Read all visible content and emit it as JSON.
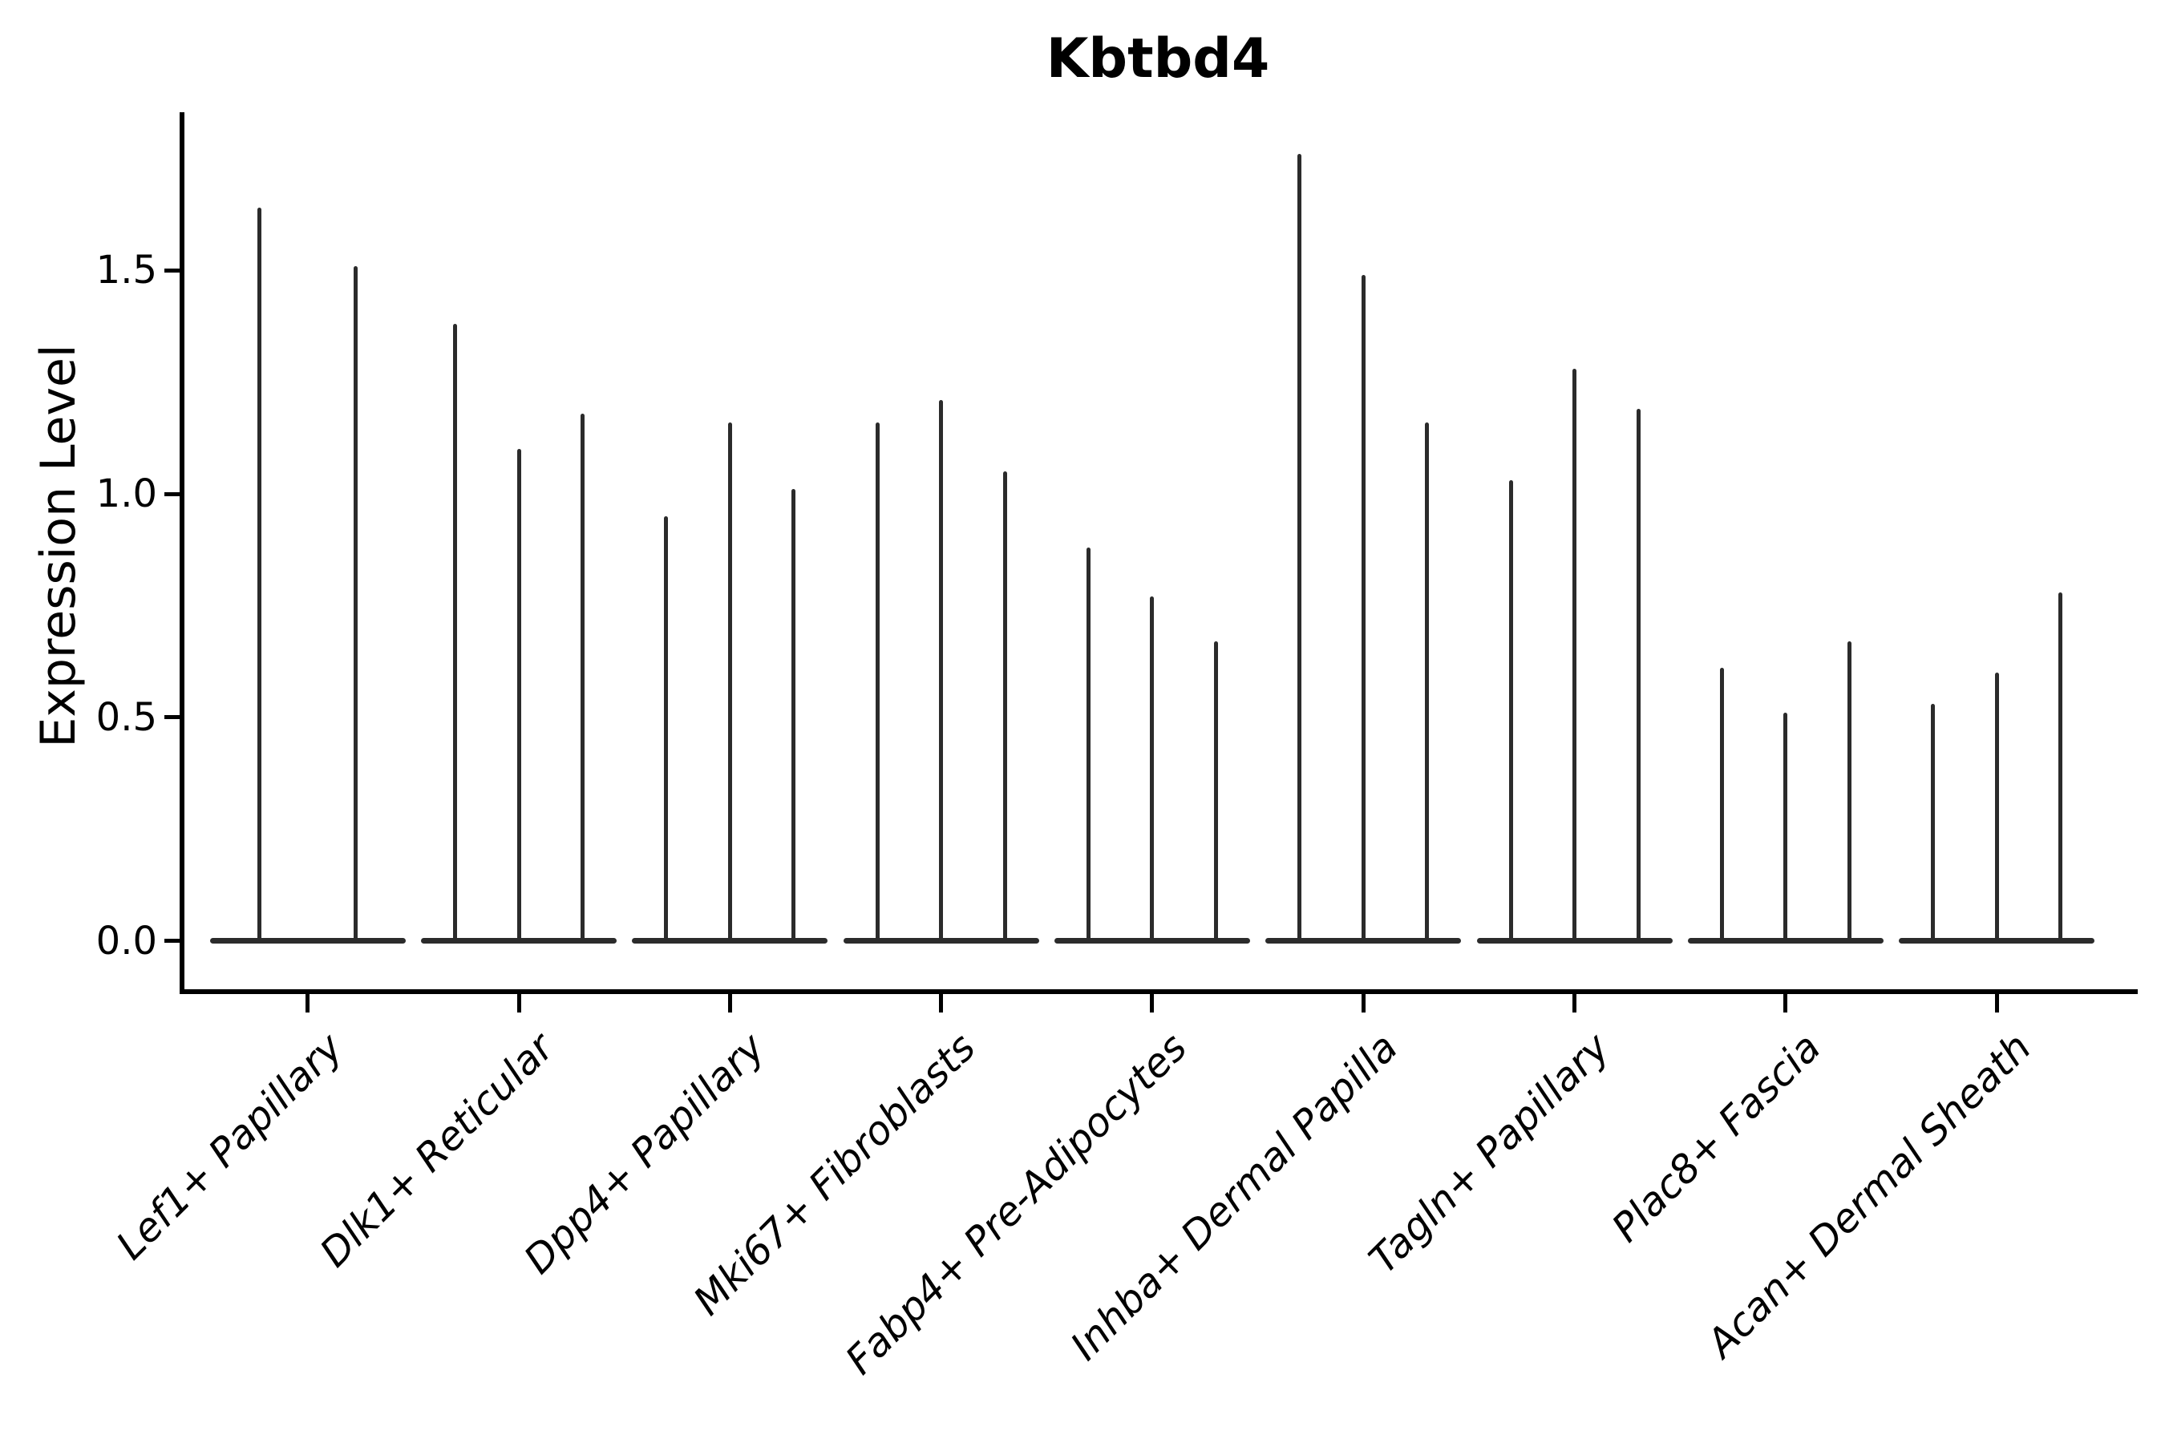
{
  "title": "Kbtbd4",
  "y_axis": {
    "label": "Expression Level",
    "tick_labels": [
      "0.0",
      "0.5",
      "1.0",
      "1.5"
    ]
  },
  "chart_data": {
    "type": "violin",
    "title": "Kbtbd4",
    "ylabel": "Expression Level",
    "xlabel": "",
    "ylim": [
      -0.11,
      1.85
    ],
    "yticks": [
      0.0,
      0.5,
      1.0,
      1.5
    ],
    "grid": false,
    "legend": "none",
    "ink_color": "#2b2b2b",
    "axis_color": "#000000",
    "categories": [
      {
        "label": "Lef1+ Papillary",
        "violin_max_values": [
          1.64,
          1.51
        ]
      },
      {
        "label": "Dlk1+ Reticular",
        "violin_max_values": [
          1.38,
          1.1,
          1.18
        ]
      },
      {
        "label": "Dpp4+ Papillary",
        "violin_max_values": [
          0.95,
          1.16,
          1.01
        ]
      },
      {
        "label": "Mki67+ Fibroblasts",
        "violin_max_values": [
          1.16,
          1.21,
          1.05
        ]
      },
      {
        "label": "Fabp4+ Pre-Adipocytes",
        "violin_max_values": [
          0.88,
          0.77,
          0.67
        ]
      },
      {
        "label": "Inhba+ Dermal Papilla",
        "violin_max_values": [
          1.76,
          1.49,
          1.16
        ]
      },
      {
        "label": "Tagln+ Papillary",
        "violin_max_values": [
          1.03,
          1.28,
          1.19
        ]
      },
      {
        "label": "Plac8+ Fascia",
        "violin_max_values": [
          0.61,
          0.51,
          0.67
        ]
      },
      {
        "label": "Acan+ Dermal Sheath",
        "violin_max_values": [
          0.53,
          0.6,
          0.78
        ]
      }
    ],
    "description": "Violin plot of Kbtbd4 expression; each category shows narrow spike violins (bulk of cells at 0) reaching the listed maximum expression level."
  }
}
